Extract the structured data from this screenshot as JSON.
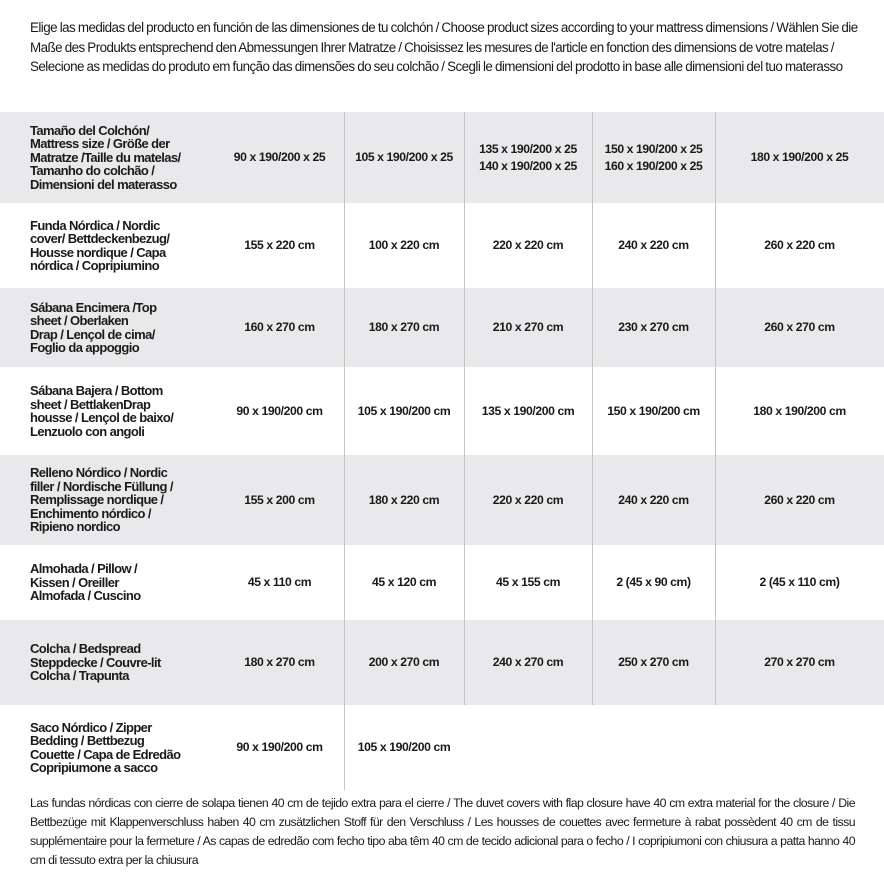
{
  "intro": "Elige las medidas del producto en función de las dimensiones de tu colchón / Choose product sizes according to your mattress dimensions / Wählen Sie die Maße des Produkts entsprechend den Abmessungen Ihrer Matratze / Choisissez les mesures de l'article en fonction des dimensions de votre matelas / Selecione as medidas do produto em função das dimensões do seu colchão / Scegli le dimensioni del prodotto in base alle dimensioni del tuo materasso",
  "rows": [
    {
      "label": [
        "Tamaño del Colchón/",
        "Mattress size / Größe der",
        "Matratze /Taille du matelas/",
        "Tamanho do colchão /",
        "Dimensioni del materasso"
      ],
      "values": [
        "90 x 190/200 x 25",
        "105 x 190/200 x 25",
        "135 x 190/200 x 25\n140 x 190/200 x 25",
        "150 x 190/200 x 25\n160 x 190/200 x 25",
        "180 x 190/200 x 25"
      ]
    },
    {
      "label": [
        "Funda Nórdica /  Nordic",
        "cover/ Bettdeckenbezug/",
        "Housse nordique  / Capa",
        "nórdica / Copripiumino"
      ],
      "values": [
        "155 x 220 cm",
        "100 x 220 cm",
        "220 x 220 cm",
        "240 x 220 cm",
        "260 x 220 cm"
      ]
    },
    {
      "label": [
        "Sábana Encimera /Top",
        "sheet / Oberlaken",
        "Drap / Lençol de cima/",
        "Foglio da appoggio"
      ],
      "values": [
        "160 x 270 cm",
        "180 x 270 cm",
        "210 x 270 cm",
        "230 x 270 cm",
        "260 x 270 cm"
      ]
    },
    {
      "label": [
        "Sábana Bajera / Bottom",
        "sheet / BettlakenDrap",
        "housse / Lençol de baixo/",
        "Lenzuolo con angoli"
      ],
      "values": [
        "90 x 190/200 cm",
        "105 x 190/200 cm",
        "135 x 190/200 cm",
        "150 x 190/200 cm",
        "180 x 190/200 cm"
      ]
    },
    {
      "label": [
        "Relleno Nórdico / Nordic",
        "filler / Nordische Füllung /",
        "Remplissage nordique /",
        "Enchimento nórdico /",
        "Ripieno nordico"
      ],
      "values": [
        "155 x 200 cm",
        "180 x 220 cm",
        "220 x 220 cm",
        "240 x 220 cm",
        "260 x 220 cm"
      ]
    },
    {
      "label": [
        "Almohada  / Pillow /",
        "Kissen / Oreiller",
        "Almofada / Cuscino"
      ],
      "values": [
        "45 x 110 cm",
        "45 x 120 cm",
        "45 x 155 cm",
        "2 (45 x 90 cm)",
        "2 (45 x 110 cm)"
      ]
    },
    {
      "label": [
        "Colcha / Bedspread",
        "Steppdecke / Couvre-lit",
        "Colcha / Trapunta"
      ],
      "values": [
        "180 x 270 cm",
        "200 x 270 cm",
        "240 x 270 cm",
        "250 x 270 cm",
        "270 x 270 cm"
      ]
    },
    {
      "label": [
        "Saco Nórdico / Zipper",
        "Bedding / Bettbezug",
        "Couette  / Capa de Edredão",
        "Copripiumone a sacco"
      ],
      "values": [
        "90 x 190/200 cm",
        "105 x 190/200 cm",
        "",
        "",
        ""
      ]
    }
  ],
  "footer": "Las fundas nórdicas con cierre de solapa tienen 40 cm de tejido extra para el cierre  / The duvet covers with flap closure have 40 cm extra material for the closure / Die Bettbezüge mit Klappenverschluss haben 40 cm zusätzlichen Stoff für den Verschluss / Les housses de couettes avec fermeture à rabat possèdent 40 cm de tissu supplémentaire pour la fermeture / As capas de edredão com fecho tipo aba têm 40 cm de tecido adicional para o fecho / I copripiumoni con chiusura a patta hanno 40 cm di tessuto extra per la chiusura",
  "colors": {
    "row_alt": "#e9e9eb",
    "divider": "#c4c4c4"
  }
}
